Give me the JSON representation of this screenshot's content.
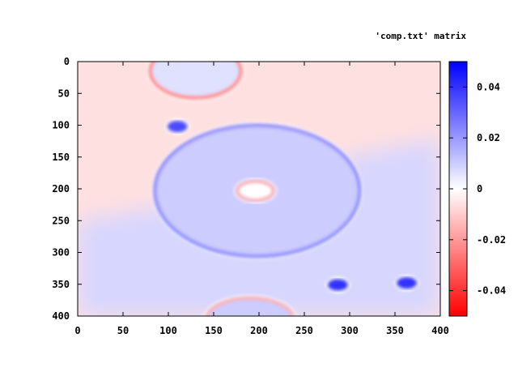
{
  "chart_data": {
    "type": "heatmap",
    "legend_title": "'comp.txt' matrix",
    "x_ticks": [
      "0",
      "50",
      "100",
      "150",
      "200",
      "250",
      "300",
      "350",
      "400"
    ],
    "y_ticks": [
      "0",
      "50",
      "100",
      "150",
      "200",
      "250",
      "300",
      "350",
      "400"
    ],
    "xlim": [
      0,
      400
    ],
    "ylim": [
      0,
      400
    ],
    "y_axis_inverted": true,
    "colorbar": {
      "range": [
        -0.05,
        0.05
      ],
      "ticks": [
        "0.04",
        "0.02",
        "0",
        "-0.02",
        "-0.04"
      ],
      "tick_values": [
        0.04,
        0.02,
        0,
        -0.02,
        -0.04
      ],
      "colors": {
        "negative": "#ff0000",
        "zero": "#ffffff",
        "positive": "#0000ff"
      }
    },
    "background_field": {
      "upper_region_value": -0.006,
      "lower_region_value": 0.008,
      "boundary_rows": [
        {
          "x": 0,
          "y": 250
        },
        {
          "x": 90,
          "y": 230
        },
        {
          "x": 200,
          "y": 205
        },
        {
          "x": 300,
          "y": 150
        },
        {
          "x": 400,
          "y": 120
        }
      ]
    },
    "features": [
      {
        "kind": "ellipse",
        "center": [
          198,
          203
        ],
        "radii": [
          113,
          103
        ],
        "fill_value": 0.01,
        "edge_value": 0.03,
        "edge_type": "bright-rim-blue"
      },
      {
        "kind": "ellipse",
        "center": [
          196,
          203
        ],
        "radii": [
          20,
          15
        ],
        "fill_value": 0.0,
        "edge_value": -0.02,
        "edge_type": "red-ring"
      },
      {
        "kind": "ellipse",
        "center": [
          130,
          15
        ],
        "radii": [
          50,
          42
        ],
        "fill_value": 0.006,
        "edge_value": -0.03,
        "edge_type": "red-ring-clipped"
      },
      {
        "kind": "ellipse",
        "center": [
          190,
          405
        ],
        "radii": [
          48,
          33
        ],
        "fill_value": 0.01,
        "edge_value": -0.02,
        "edge_type": "red-ring-clipped"
      },
      {
        "kind": "blob",
        "center": [
          110,
          102
        ],
        "radii": [
          11,
          9
        ],
        "value": 0.035
      },
      {
        "kind": "blob",
        "center": [
          287,
          351
        ],
        "radii": [
          11,
          9
        ],
        "value": 0.04
      },
      {
        "kind": "blob",
        "center": [
          363,
          348
        ],
        "radii": [
          11,
          9
        ],
        "value": 0.04
      }
    ]
  }
}
